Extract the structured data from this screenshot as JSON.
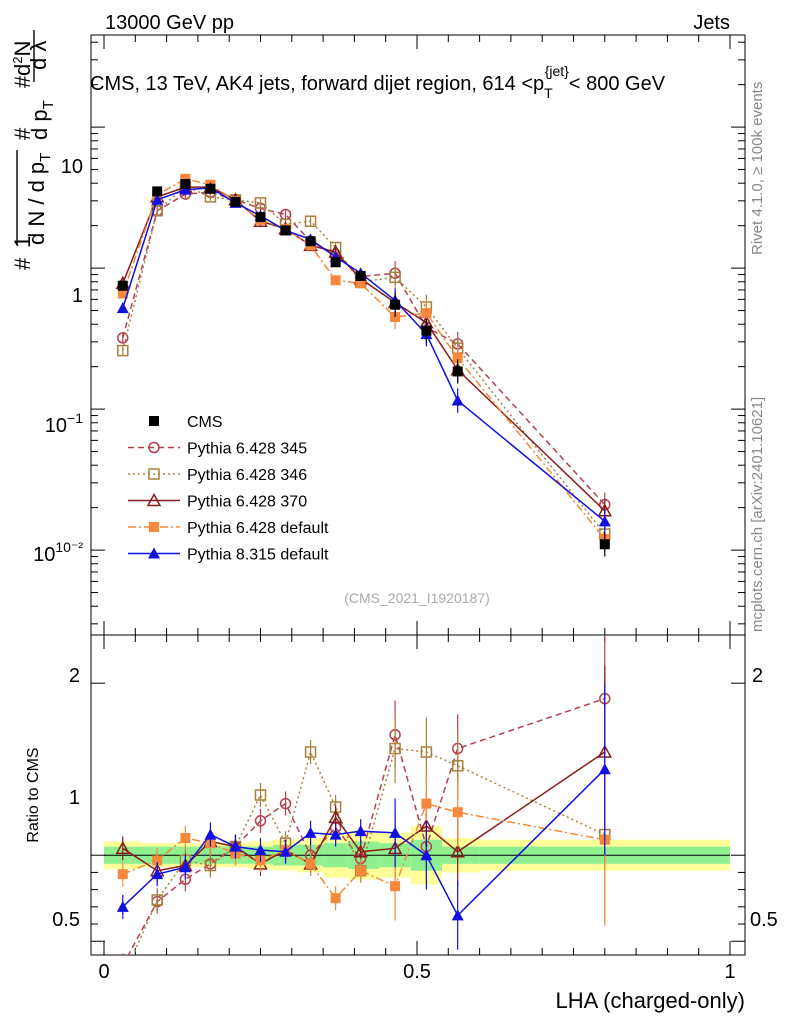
{
  "header": {
    "left": "13000 GeV pp",
    "right": "Jets"
  },
  "side_labels": {
    "rivet": "Rivet 4.1.0, ≥ 100k events",
    "mcplots": "mcplots.cern.ch [arXiv:2401.10621]"
  },
  "watermark": "(CMS_2021_I1920187)",
  "colors": {
    "cms": "#000000",
    "p345": "#b5404f",
    "p346": "#a9803b",
    "p370": "#8b1a1a",
    "p6def": "#f5883a",
    "p8def": "#1010e0",
    "band_inner": "#90f090",
    "band_outer": "#ffff99"
  },
  "chart_data": [
    {
      "type": "line",
      "panel": "main",
      "title_prefix": "CMS, 13 TeV, AK4 jets, forward dijet region, 614 <p",
      "title_sub": "T",
      "title_sup": "{jet}",
      "title_suffix": "< 800 GeV",
      "ylabel": "1/N dN/dp_T dN^2/dp_T dλ",
      "yscale": "log",
      "ylim": [
        0.0025,
        45
      ],
      "xlim": [
        -0.02,
        1.0
      ],
      "y_tick_labels": [
        "10⁻²",
        "10⁻¹",
        "1",
        "10"
      ],
      "x": [
        0.03,
        0.085,
        0.13,
        0.17,
        0.21,
        0.25,
        0.29,
        0.33,
        0.37,
        0.41,
        0.465,
        0.515,
        0.565,
        0.8
      ],
      "series": [
        {
          "key": "cms",
          "name": "CMS",
          "marker": "square-filled",
          "line": "none",
          "values": [
            0.75,
            3.5,
            3.95,
            3.65,
            2.95,
            2.3,
            1.85,
            1.55,
            1.1,
            0.88,
            0.55,
            0.36,
            0.185,
            0.011
          ]
        },
        {
          "key": "p345",
          "name": "Pythia 6.428 345",
          "marker": "circle-open",
          "line": "dashed",
          "values": [
            0.32,
            2.55,
            3.35,
            3.45,
            3.05,
            2.65,
            2.4,
            1.55,
            1.25,
            0.87,
            0.92,
            0.38,
            0.29,
            0.021
          ]
        },
        {
          "key": "p346",
          "name": "Pythia 6.428 346",
          "marker": "square-open",
          "line": "dotted",
          "values": [
            0.26,
            2.55,
            3.8,
            3.2,
            3.05,
            2.9,
            2.05,
            2.15,
            1.4,
            0.8,
            0.86,
            0.53,
            0.27,
            0.013
          ]
        },
        {
          "key": "p370",
          "name": "Pythia 6.428 370",
          "marker": "triangle-open",
          "line": "solid",
          "values": [
            0.78,
            3.2,
            3.75,
            3.75,
            3.05,
            2.15,
            1.9,
            1.45,
            1.3,
            0.84,
            0.57,
            0.41,
            0.19,
            0.019
          ]
        },
        {
          "key": "p6def",
          "name": "Pythia 6.428 default",
          "marker": "square-filled",
          "line": "dashdot",
          "values": [
            0.66,
            3.3,
            4.3,
            3.9,
            3.0,
            2.2,
            1.9,
            1.45,
            0.82,
            0.78,
            0.45,
            0.48,
            0.23,
            0.012
          ]
        },
        {
          "key": "p8def",
          "name": "Pythia 8.315 default",
          "marker": "triangle-filled",
          "line": "solid",
          "values": [
            0.52,
            3.05,
            3.6,
            3.7,
            2.9,
            2.35,
            1.85,
            1.6,
            1.2,
            0.92,
            0.59,
            0.34,
            0.115,
            0.016
          ]
        }
      ],
      "legend_position": "bottom-left"
    },
    {
      "type": "line",
      "panel": "ratio",
      "ylabel": "Ratio to CMS",
      "xlabel": "LHA (charged-only)",
      "ylim": [
        0.42,
        2.28
      ],
      "xlim": [
        -0.02,
        1.0
      ],
      "y_ticks": [
        0.5,
        1,
        2
      ],
      "y_tick_labels": [
        "0.5",
        "1",
        "2"
      ],
      "x_ticks": [
        0,
        0.5,
        1
      ],
      "x_tick_labels": [
        "0",
        "0.5",
        "1"
      ],
      "band_bins": [
        0.0,
        0.06,
        0.11,
        0.15,
        0.19,
        0.23,
        0.27,
        0.31,
        0.35,
        0.39,
        0.44,
        0.49,
        0.54,
        0.6,
        1.0
      ],
      "band_inner": [
        0.05,
        0.05,
        0.05,
        0.05,
        0.05,
        0.05,
        0.06,
        0.06,
        0.07,
        0.08,
        0.07,
        0.09,
        0.05,
        0.05
      ],
      "band_outer": [
        0.08,
        0.07,
        0.07,
        0.07,
        0.07,
        0.08,
        0.09,
        0.1,
        0.13,
        0.14,
        0.13,
        0.17,
        0.1,
        0.09
      ],
      "x": [
        0.03,
        0.085,
        0.13,
        0.17,
        0.21,
        0.25,
        0.29,
        0.33,
        0.37,
        0.41,
        0.465,
        0.515,
        0.565,
        0.8
      ],
      "series": [
        {
          "key": "p345",
          "values": [
            0.36,
            0.73,
            0.86,
            0.95,
            1.05,
            1.2,
            1.3,
            1.0,
            1.16,
            0.98,
            1.7,
            1.05,
            1.62,
            1.91
          ]
        },
        {
          "key": "p346",
          "values": [
            0.28,
            0.74,
            0.97,
            0.94,
            1.05,
            1.35,
            1.07,
            1.6,
            1.28,
            0.91,
            1.62,
            1.6,
            1.52,
            1.12
          ]
        },
        {
          "key": "p370",
          "values": [
            1.04,
            0.91,
            0.94,
            1.08,
            1.05,
            0.95,
            1.03,
            0.95,
            1.22,
            1.02,
            1.04,
            1.17,
            1.02,
            1.6
          ]
        },
        {
          "key": "p6def",
          "values": [
            0.89,
            0.97,
            1.1,
            1.07,
            1.01,
            0.97,
            1.03,
            0.95,
            0.75,
            0.91,
            0.82,
            1.3,
            1.25,
            1.09
          ]
        },
        {
          "key": "p8def",
          "values": [
            0.7,
            0.89,
            0.93,
            1.12,
            1.05,
            1.03,
            1.02,
            1.13,
            1.12,
            1.14,
            1.13,
            1.0,
            0.65,
            1.5
          ]
        }
      ]
    }
  ]
}
